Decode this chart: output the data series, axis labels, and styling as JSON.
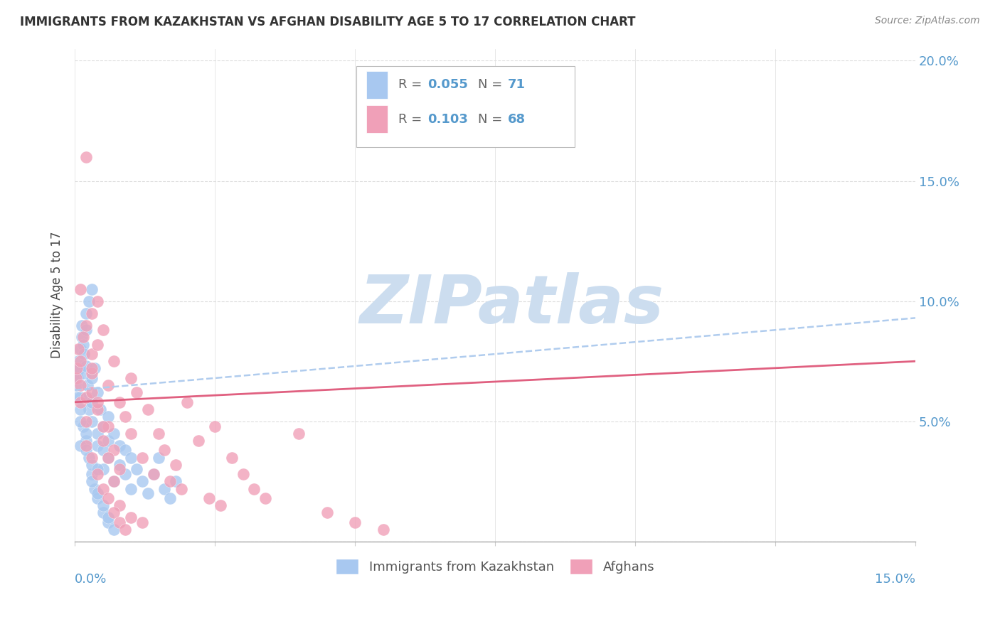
{
  "title": "IMMIGRANTS FROM KAZAKHSTAN VS AFGHAN DISABILITY AGE 5 TO 17 CORRELATION CHART",
  "source": "Source: ZipAtlas.com",
  "ylabel": "Disability Age 5 to 17",
  "legend1_r": "0.055",
  "legend1_n": "71",
  "legend2_r": "0.103",
  "legend2_n": "68",
  "legend_label1": "Immigrants from Kazakhstan",
  "legend_label2": "Afghans",
  "blue_color": "#a8c8f0",
  "pink_color": "#f0a0b8",
  "trend_blue_color": "#b0ccee",
  "trend_pink_color": "#e06080",
  "watermark_color": "#ccddef",
  "title_color": "#333333",
  "axis_label_color": "#5599cc",
  "background": "#ffffff",
  "xlim": [
    0.0,
    0.15
  ],
  "ylim": [
    0.0,
    0.205
  ],
  "kazakhstan_x": [
    0.0002,
    0.0003,
    0.0005,
    0.0006,
    0.0008,
    0.001,
    0.001,
    0.0012,
    0.0013,
    0.0015,
    0.0016,
    0.0018,
    0.002,
    0.002,
    0.002,
    0.0022,
    0.0023,
    0.0025,
    0.0025,
    0.003,
    0.003,
    0.003,
    0.003,
    0.0035,
    0.004,
    0.004,
    0.004,
    0.0045,
    0.005,
    0.005,
    0.005,
    0.006,
    0.006,
    0.006,
    0.007,
    0.007,
    0.008,
    0.008,
    0.009,
    0.009,
    0.01,
    0.01,
    0.011,
    0.012,
    0.013,
    0.014,
    0.015,
    0.016,
    0.017,
    0.018,
    0.0005,
    0.001,
    0.0015,
    0.002,
    0.0025,
    0.003,
    0.0035,
    0.004,
    0.005,
    0.006,
    0.001,
    0.001,
    0.002,
    0.002,
    0.003,
    0.003,
    0.004,
    0.004,
    0.005,
    0.006,
    0.007
  ],
  "kazakhstan_y": [
    0.065,
    0.07,
    0.068,
    0.075,
    0.072,
    0.08,
    0.06,
    0.085,
    0.09,
    0.082,
    0.078,
    0.07,
    0.095,
    0.088,
    0.073,
    0.065,
    0.06,
    0.1,
    0.055,
    0.105,
    0.068,
    0.058,
    0.05,
    0.072,
    0.045,
    0.062,
    0.04,
    0.055,
    0.048,
    0.038,
    0.03,
    0.052,
    0.042,
    0.035,
    0.045,
    0.025,
    0.04,
    0.032,
    0.038,
    0.028,
    0.035,
    0.022,
    0.03,
    0.025,
    0.02,
    0.028,
    0.035,
    0.022,
    0.018,
    0.025,
    0.06,
    0.055,
    0.048,
    0.042,
    0.035,
    0.028,
    0.022,
    0.018,
    0.012,
    0.008,
    0.05,
    0.04,
    0.045,
    0.038,
    0.032,
    0.025,
    0.03,
    0.02,
    0.015,
    0.01,
    0.005
  ],
  "afghan_x": [
    0.0002,
    0.0004,
    0.0006,
    0.001,
    0.001,
    0.001,
    0.0015,
    0.002,
    0.002,
    0.002,
    0.003,
    0.003,
    0.003,
    0.003,
    0.004,
    0.004,
    0.004,
    0.005,
    0.005,
    0.006,
    0.006,
    0.007,
    0.007,
    0.008,
    0.008,
    0.009,
    0.01,
    0.01,
    0.011,
    0.012,
    0.013,
    0.014,
    0.015,
    0.016,
    0.017,
    0.018,
    0.019,
    0.02,
    0.022,
    0.024,
    0.025,
    0.026,
    0.028,
    0.03,
    0.032,
    0.034,
    0.04,
    0.045,
    0.05,
    0.055,
    0.001,
    0.002,
    0.003,
    0.004,
    0.005,
    0.006,
    0.007,
    0.008,
    0.01,
    0.012,
    0.002,
    0.003,
    0.004,
    0.005,
    0.006,
    0.007,
    0.008,
    0.009
  ],
  "afghan_y": [
    0.068,
    0.072,
    0.08,
    0.075,
    0.065,
    0.058,
    0.085,
    0.09,
    0.06,
    0.05,
    0.095,
    0.078,
    0.07,
    0.062,
    0.1,
    0.082,
    0.055,
    0.088,
    0.042,
    0.065,
    0.048,
    0.075,
    0.038,
    0.058,
    0.03,
    0.052,
    0.068,
    0.045,
    0.062,
    0.035,
    0.055,
    0.028,
    0.045,
    0.038,
    0.025,
    0.032,
    0.022,
    0.058,
    0.042,
    0.018,
    0.048,
    0.015,
    0.035,
    0.028,
    0.022,
    0.018,
    0.045,
    0.012,
    0.008,
    0.005,
    0.105,
    0.16,
    0.072,
    0.058,
    0.048,
    0.035,
    0.025,
    0.015,
    0.01,
    0.008,
    0.04,
    0.035,
    0.028,
    0.022,
    0.018,
    0.012,
    0.008,
    0.005
  ]
}
